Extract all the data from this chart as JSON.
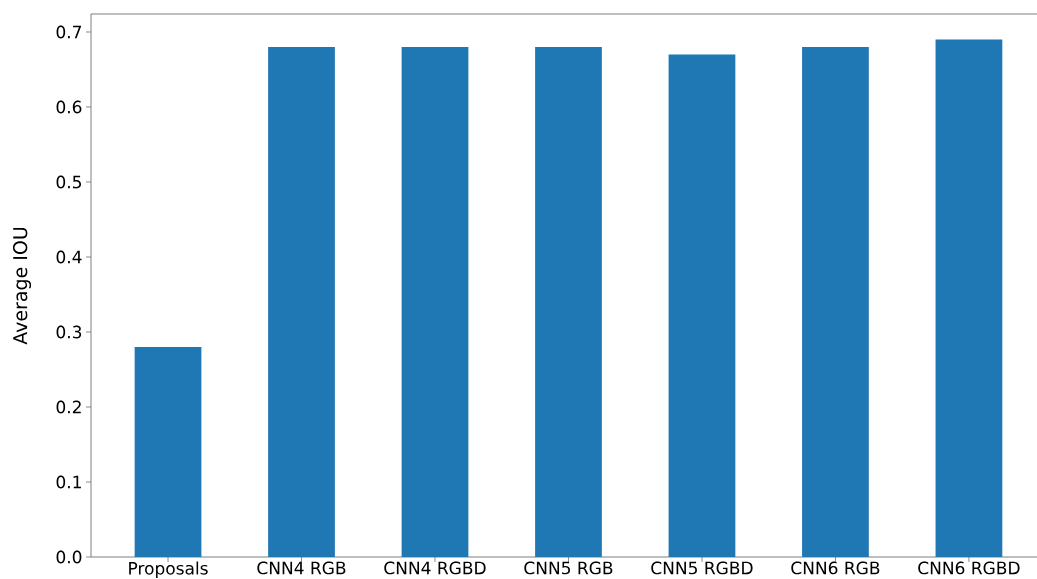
{
  "chart_data": {
    "type": "bar",
    "ylabel": "Average IOU",
    "categories": [
      "Proposals",
      "CNN4 RGB",
      "CNN4 RGBD",
      "CNN5 RGB",
      "CNN5 RGBD",
      "CNN6 RGB",
      "CNN6 RGBD"
    ],
    "values": [
      0.28,
      0.68,
      0.68,
      0.68,
      0.67,
      0.68,
      0.69
    ],
    "color": "#1f77b4",
    "ylim": [
      0,
      0.724
    ],
    "yticks": [
      {
        "value": 0,
        "label": "0.0"
      },
      0.1,
      0.2,
      0.3,
      0.4,
      0.5,
      0.6,
      0.7
    ]
  }
}
